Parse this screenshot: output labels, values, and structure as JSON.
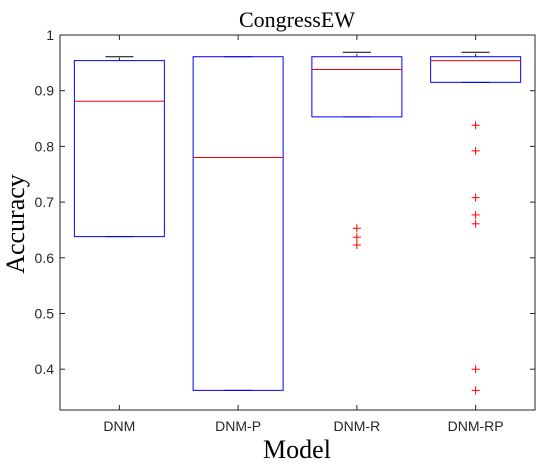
{
  "chart_data": {
    "type": "box",
    "title": "CongressEW",
    "xlabel": "Model",
    "ylabel": "Accuracy",
    "categories": [
      "DNM",
      "DNM-P",
      "DNM-R",
      "DNM-RP"
    ],
    "ylim": [
      0.35,
      1.0
    ],
    "yticks": [
      0.4,
      0.5,
      0.6,
      0.7,
      0.8,
      0.9,
      1
    ],
    "ytick_labels": [
      "0.4",
      "0.5",
      "0.6",
      "0.7",
      "0.8",
      "0.9",
      "1"
    ],
    "box_color": "#0000ff",
    "median_color": "#ff0000",
    "outlier_color": "#ff0000",
    "boxes": [
      {
        "category": "DNM",
        "whisker_low": 0.638,
        "q1": 0.638,
        "median": 0.881,
        "q3": 0.954,
        "whisker_high": 0.961,
        "outliers": []
      },
      {
        "category": "DNM-P",
        "whisker_low": 0.362,
        "q1": 0.362,
        "median": 0.78,
        "q3": 0.961,
        "whisker_high": 0.961,
        "outliers": []
      },
      {
        "category": "DNM-R",
        "whisker_low": 0.853,
        "q1": 0.853,
        "median": 0.938,
        "q3": 0.961,
        "whisker_high": 0.969,
        "outliers": [
          0.653,
          0.637,
          0.623
        ]
      },
      {
        "category": "DNM-RP",
        "whisker_low": 0.915,
        "q1": 0.915,
        "median": 0.954,
        "q3": 0.961,
        "whisker_high": 0.969,
        "outliers": [
          0.838,
          0.792,
          0.708,
          0.677,
          0.661,
          0.4,
          0.362
        ]
      }
    ]
  }
}
